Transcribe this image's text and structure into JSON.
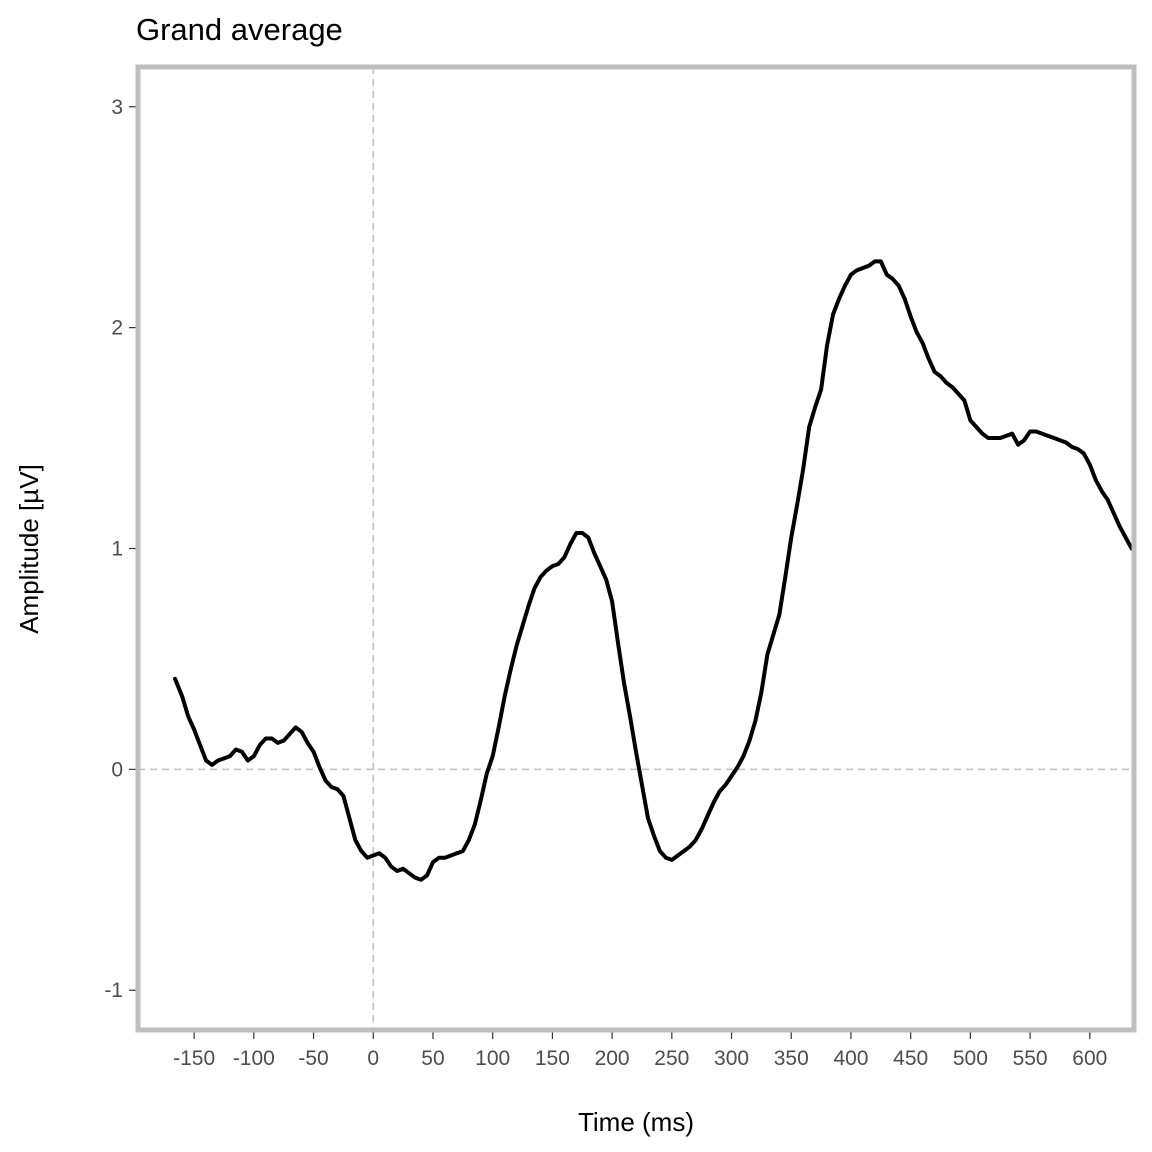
{
  "chart_data": {
    "type": "line",
    "title": "Grand average",
    "xlabel": "Time (ms)",
    "ylabel": "Amplitude [µV]",
    "xlim": [
      -197,
      637
    ],
    "ylim": [
      -1.18,
      3.18
    ],
    "x_ticks": [
      -150,
      -100,
      -50,
      0,
      50,
      100,
      150,
      200,
      250,
      300,
      350,
      400,
      450,
      500,
      550,
      600
    ],
    "x_tick_labels": [
      "-150",
      "-100",
      "-50",
      "0",
      "50",
      "100",
      "150",
      "200",
      "250",
      "300",
      "350",
      "400",
      "450",
      "500",
      "550",
      "600"
    ],
    "y_ticks": [
      -1,
      0,
      1,
      2,
      3
    ],
    "y_tick_labels": [
      "-1",
      "0",
      "1",
      "2",
      "3"
    ],
    "reference_lines": {
      "x": 0,
      "y": 0,
      "style": "dashed",
      "color": "#bebebe"
    },
    "grid": false,
    "series": [
      {
        "color": "#000000",
        "x": [
          -166,
          -160,
          -155,
          -150,
          -145,
          -140,
          -135,
          -130,
          -125,
          -120,
          -115,
          -110,
          -105,
          -100,
          -95,
          -90,
          -85,
          -80,
          -75,
          -70,
          -65,
          -60,
          -55,
          -50,
          -45,
          -40,
          -35,
          -30,
          -25,
          -20,
          -15,
          -10,
          -5,
          0,
          5,
          10,
          15,
          20,
          25,
          30,
          35,
          40,
          45,
          50,
          55,
          60,
          65,
          70,
          75,
          80,
          85,
          90,
          95,
          100,
          105,
          110,
          115,
          120,
          125,
          130,
          135,
          140,
          145,
          150,
          155,
          160,
          165,
          170,
          175,
          180,
          185,
          190,
          195,
          200,
          205,
          210,
          215,
          220,
          225,
          230,
          235,
          240,
          245,
          250,
          255,
          260,
          265,
          270,
          275,
          280,
          285,
          290,
          295,
          300,
          305,
          310,
          315,
          320,
          325,
          330,
          335,
          340,
          345,
          350,
          355,
          360,
          365,
          370,
          375,
          380,
          385,
          390,
          395,
          400,
          405,
          410,
          415,
          420,
          425,
          430,
          435,
          440,
          445,
          450,
          455,
          460,
          465,
          470,
          475,
          480,
          485,
          490,
          495,
          500,
          505,
          510,
          515,
          520,
          525,
          530,
          535,
          540,
          545,
          550,
          555,
          560,
          565,
          570,
          575,
          580,
          585,
          590,
          595,
          600,
          605,
          610,
          615,
          620,
          625,
          630,
          635
        ],
        "y": [
          0.41,
          0.33,
          0.24,
          0.18,
          0.11,
          0.04,
          0.02,
          0.04,
          0.05,
          0.06,
          0.09,
          0.08,
          0.04,
          0.06,
          0.11,
          0.14,
          0.14,
          0.12,
          0.13,
          0.16,
          0.19,
          0.17,
          0.12,
          0.08,
          0.01,
          -0.05,
          -0.08,
          -0.09,
          -0.12,
          -0.22,
          -0.32,
          -0.37,
          -0.4,
          -0.39,
          -0.38,
          -0.4,
          -0.44,
          -0.46,
          -0.45,
          -0.47,
          -0.49,
          -0.5,
          -0.48,
          -0.42,
          -0.4,
          -0.4,
          -0.39,
          -0.38,
          -0.37,
          -0.32,
          -0.25,
          -0.14,
          -0.02,
          0.06,
          0.19,
          0.33,
          0.45,
          0.56,
          0.65,
          0.74,
          0.82,
          0.87,
          0.9,
          0.92,
          0.93,
          0.96,
          1.02,
          1.07,
          1.07,
          1.05,
          0.98,
          0.92,
          0.86,
          0.76,
          0.57,
          0.39,
          0.24,
          0.08,
          -0.07,
          -0.22,
          -0.3,
          -0.37,
          -0.4,
          -0.41,
          -0.39,
          -0.37,
          -0.35,
          -0.32,
          -0.27,
          -0.21,
          -0.15,
          -0.1,
          -0.07,
          -0.03,
          0.01,
          0.06,
          0.13,
          0.22,
          0.35,
          0.52,
          0.61,
          0.7,
          0.87,
          1.05,
          1.2,
          1.36,
          1.55,
          1.64,
          1.72,
          1.92,
          2.06,
          2.13,
          2.19,
          2.24,
          2.26,
          2.27,
          2.28,
          2.3,
          2.3,
          2.24,
          2.22,
          2.19,
          2.13,
          2.05,
          1.98,
          1.93,
          1.86,
          1.8,
          1.78,
          1.75,
          1.73,
          1.7,
          1.67,
          1.58,
          1.55,
          1.52,
          1.5,
          1.5,
          1.5,
          1.51,
          1.52,
          1.47,
          1.49,
          1.53,
          1.53,
          1.52,
          1.51,
          1.5,
          1.49,
          1.48,
          1.46,
          1.45,
          1.43,
          1.38,
          1.31,
          1.26,
          1.22,
          1.16,
          1.1,
          1.05,
          1.0
        ]
      }
    ]
  }
}
